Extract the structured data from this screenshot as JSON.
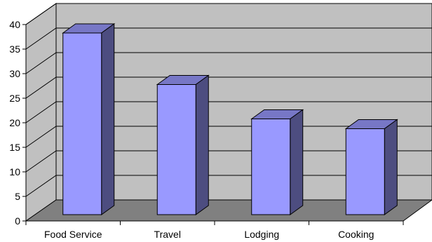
{
  "chart_data": {
    "type": "bar",
    "style": "3d-column",
    "categories": [
      "Food Service",
      "Travel",
      "Lodging",
      "Cooking"
    ],
    "values": [
      37,
      26.5,
      19.5,
      17.5
    ],
    "y_ticks": [
      "0",
      "5",
      "10",
      "15",
      "20",
      "25",
      "30",
      "35",
      "40"
    ],
    "ylim": [
      0,
      40
    ],
    "grid": true,
    "title": "",
    "xlabel": "",
    "ylabel": ""
  },
  "colors": {
    "wall": "#c0c0c0",
    "floor": "#808080",
    "bar_front": "#9999ff",
    "bar_side": "#4d4d80",
    "bar_top": "#7777c6",
    "grid": "#000000"
  }
}
